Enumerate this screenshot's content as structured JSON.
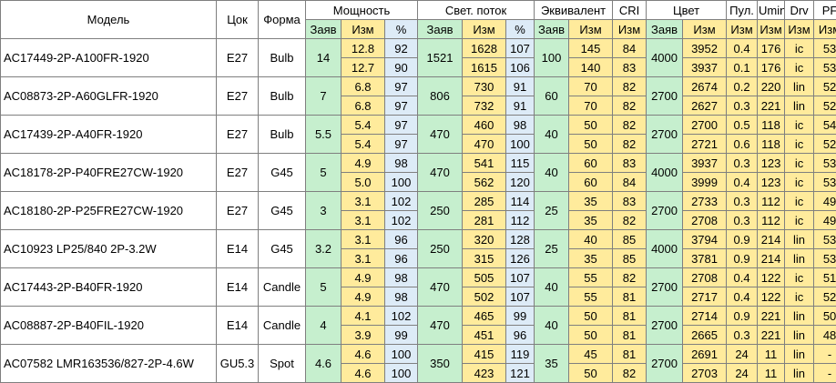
{
  "headers": {
    "model": "Модель",
    "base": "Цок",
    "shape": "Форма",
    "power": "Мощность",
    "flux": "Свет. поток",
    "equiv": "Эквивалент",
    "cri": "CRI",
    "color": "Цвет",
    "ripple": "Пул.",
    "umin": "Umin",
    "drv": "Drv",
    "pf": "PF",
    "claimed": "Заяв",
    "measured": "Изм",
    "percent": "%"
  },
  "rows": [
    {
      "model": "AC17449-2P-A100FR-1920",
      "base": "E27",
      "shape": "Bulb",
      "p_claim": "14",
      "flux_claim": "1521",
      "eq_claim": "100",
      "col_claim": "4000",
      "m": [
        {
          "p": "12.8",
          "pp": "92",
          "f": "1628",
          "fp": "107",
          "eq": "145",
          "cri": "84",
          "col": "3952",
          "rip": "0.4",
          "umin": "176",
          "drv": "ic",
          "pf": "53"
        },
        {
          "p": "12.7",
          "pp": "90",
          "f": "1615",
          "fp": "106",
          "eq": "140",
          "cri": "83",
          "col": "3937",
          "rip": "0.1",
          "umin": "176",
          "drv": "ic",
          "pf": "53"
        }
      ]
    },
    {
      "model": "AC08873-2P-A60GLFR-1920",
      "base": "E27",
      "shape": "Bulb",
      "p_claim": "7",
      "flux_claim": "806",
      "eq_claim": "60",
      "col_claim": "2700",
      "m": [
        {
          "p": "6.8",
          "pp": "97",
          "f": "730",
          "fp": "91",
          "eq": "70",
          "cri": "82",
          "col": "2674",
          "rip": "0.2",
          "umin": "220",
          "drv": "lin",
          "pf": "52"
        },
        {
          "p": "6.8",
          "pp": "97",
          "f": "732",
          "fp": "91",
          "eq": "70",
          "cri": "82",
          "col": "2627",
          "rip": "0.3",
          "umin": "221",
          "drv": "lin",
          "pf": "52"
        }
      ]
    },
    {
      "model": "AC17439-2P-A40FR-1920",
      "base": "E27",
      "shape": "Bulb",
      "p_claim": "5.5",
      "flux_claim": "470",
      "eq_claim": "40",
      "col_claim": "2700",
      "m": [
        {
          "p": "5.4",
          "pp": "97",
          "f": "460",
          "fp": "98",
          "eq": "50",
          "cri": "82",
          "col": "2700",
          "rip": "0.5",
          "umin": "118",
          "drv": "ic",
          "pf": "54"
        },
        {
          "p": "5.4",
          "pp": "97",
          "f": "470",
          "fp": "100",
          "eq": "50",
          "cri": "82",
          "col": "2721",
          "rip": "0.6",
          "umin": "118",
          "drv": "ic",
          "pf": "52"
        }
      ]
    },
    {
      "model": "AC18178-2P-P40FRE27CW-1920",
      "base": "E27",
      "shape": "G45",
      "p_claim": "5",
      "flux_claim": "470",
      "eq_claim": "40",
      "col_claim": "4000",
      "m": [
        {
          "p": "4.9",
          "pp": "98",
          "f": "541",
          "fp": "115",
          "eq": "60",
          "cri": "83",
          "col": "3937",
          "rip": "0.3",
          "umin": "123",
          "drv": "ic",
          "pf": "53"
        },
        {
          "p": "5.0",
          "pp": "100",
          "f": "562",
          "fp": "120",
          "eq": "60",
          "cri": "84",
          "col": "3999",
          "rip": "0.4",
          "umin": "123",
          "drv": "ic",
          "pf": "53"
        }
      ]
    },
    {
      "model": "AC18180-2P-P25FRE27CW-1920",
      "base": "E27",
      "shape": "G45",
      "p_claim": "3",
      "flux_claim": "250",
      "eq_claim": "25",
      "col_claim": "2700",
      "m": [
        {
          "p": "3.1",
          "pp": "102",
          "f": "285",
          "fp": "114",
          "eq": "35",
          "cri": "83",
          "col": "2733",
          "rip": "0.3",
          "umin": "112",
          "drv": "ic",
          "pf": "49"
        },
        {
          "p": "3.1",
          "pp": "102",
          "f": "281",
          "fp": "112",
          "eq": "35",
          "cri": "82",
          "col": "2708",
          "rip": "0.3",
          "umin": "112",
          "drv": "ic",
          "pf": "49"
        }
      ]
    },
    {
      "model": "AC10923 LP25/840 2P-3.2W",
      "base": "E14",
      "shape": "G45",
      "p_claim": "3.2",
      "flux_claim": "250",
      "eq_claim": "25",
      "col_claim": "4000",
      "m": [
        {
          "p": "3.1",
          "pp": "96",
          "f": "320",
          "fp": "128",
          "eq": "40",
          "cri": "85",
          "col": "3794",
          "rip": "0.9",
          "umin": "214",
          "drv": "lin",
          "pf": "53"
        },
        {
          "p": "3.1",
          "pp": "96",
          "f": "315",
          "fp": "126",
          "eq": "35",
          "cri": "85",
          "col": "3781",
          "rip": "0.9",
          "umin": "214",
          "drv": "lin",
          "pf": "53"
        }
      ]
    },
    {
      "model": "AC17443-2P-B40FR-1920",
      "base": "E14",
      "shape": "Candle",
      "p_claim": "5",
      "flux_claim": "470",
      "eq_claim": "40",
      "col_claim": "2700",
      "m": [
        {
          "p": "4.9",
          "pp": "98",
          "f": "505",
          "fp": "107",
          "eq": "55",
          "cri": "82",
          "col": "2708",
          "rip": "0.4",
          "umin": "122",
          "drv": "ic",
          "pf": "51"
        },
        {
          "p": "4.9",
          "pp": "98",
          "f": "502",
          "fp": "107",
          "eq": "55",
          "cri": "81",
          "col": "2717",
          "rip": "0.4",
          "umin": "122",
          "drv": "ic",
          "pf": "52"
        }
      ]
    },
    {
      "model": "AC08887-2P-B40FIL-1920",
      "base": "E14",
      "shape": "Candle",
      "p_claim": "4",
      "flux_claim": "470",
      "eq_claim": "40",
      "col_claim": "2700",
      "m": [
        {
          "p": "4.1",
          "pp": "102",
          "f": "465",
          "fp": "99",
          "eq": "50",
          "cri": "81",
          "col": "2714",
          "rip": "0.9",
          "umin": "221",
          "drv": "lin",
          "pf": "50"
        },
        {
          "p": "3.9",
          "pp": "99",
          "f": "451",
          "fp": "96",
          "eq": "50",
          "cri": "81",
          "col": "2665",
          "rip": "0.3",
          "umin": "221",
          "drv": "lin",
          "pf": "48"
        }
      ]
    },
    {
      "model": "AC07582 LMR163536/827-2P-4.6W",
      "base": "GU5.3",
      "shape": "Spot",
      "p_claim": "4.6",
      "flux_claim": "350",
      "eq_claim": "35",
      "col_claim": "2700",
      "m": [
        {
          "p": "4.6",
          "pp": "100",
          "f": "415",
          "fp": "119",
          "eq": "45",
          "cri": "81",
          "col": "2691",
          "rip": "24",
          "umin": "11",
          "drv": "lin",
          "pf": "-"
        },
        {
          "p": "4.6",
          "pp": "100",
          "f": "423",
          "fp": "121",
          "eq": "50",
          "cri": "82",
          "col": "2703",
          "rip": "24",
          "umin": "11",
          "drv": "lin",
          "pf": "-"
        }
      ]
    }
  ]
}
